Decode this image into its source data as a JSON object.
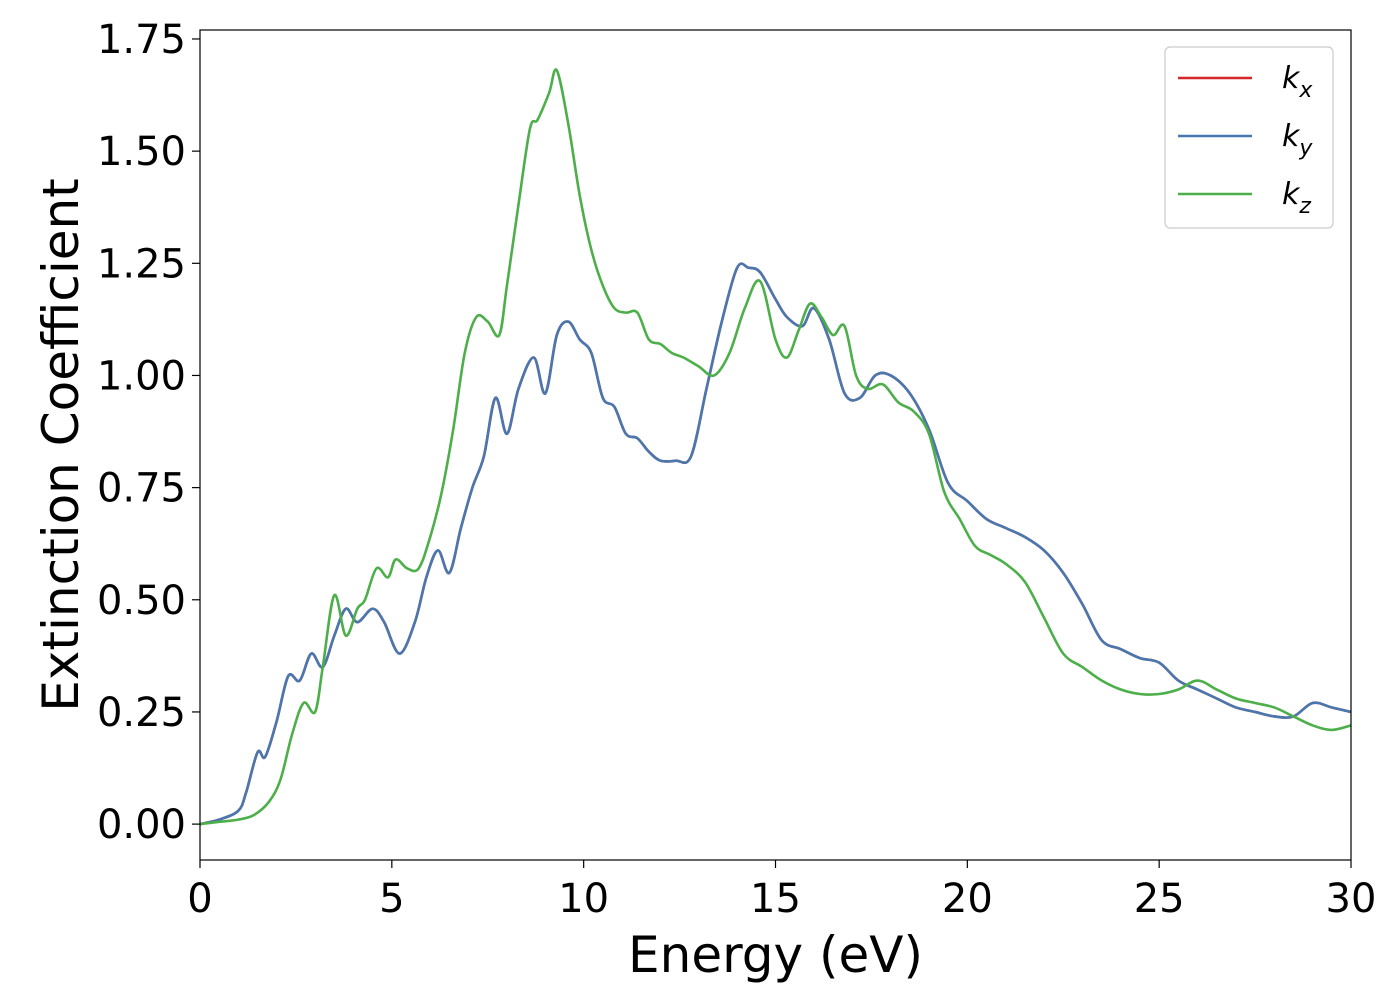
{
  "chart_data": {
    "type": "line",
    "title": "",
    "xlabel": "Energy (eV)",
    "ylabel": "Extinction Coefficient",
    "xlim": [
      0,
      30
    ],
    "ylim": [
      -0.08,
      1.77
    ],
    "xticks": [
      0,
      5,
      10,
      15,
      20,
      25,
      30
    ],
    "xtick_labels": [
      "0",
      "5",
      "10",
      "15",
      "20",
      "25",
      "30"
    ],
    "yticks": [
      0.0,
      0.25,
      0.5,
      0.75,
      1.0,
      1.25,
      1.5,
      1.75
    ],
    "ytick_labels": [
      "0.00",
      "0.25",
      "0.50",
      "0.75",
      "1.00",
      "1.25",
      "1.50",
      "1.75"
    ],
    "grid": false,
    "legend_position": "top-right",
    "series": [
      {
        "name": "k",
        "subscript": "x",
        "color": "#d62728",
        "x": [
          0,
          0.5,
          1.0,
          1.2,
          1.5,
          1.7,
          2.0,
          2.3,
          2.6,
          2.9,
          3.2,
          3.5,
          3.8,
          4.1,
          4.5,
          4.8,
          5.2,
          5.6,
          5.9,
          6.2,
          6.5,
          6.8,
          7.1,
          7.4,
          7.7,
          8.0,
          8.3,
          8.7,
          9.0,
          9.3,
          9.6,
          9.9,
          10.2,
          10.5,
          10.8,
          11.1,
          11.4,
          11.7,
          12.0,
          12.4,
          12.8,
          13.2,
          13.6,
          14.0,
          14.3,
          14.6,
          15.0,
          15.3,
          15.7,
          16.0,
          16.4,
          16.8,
          17.2,
          17.6,
          18.0,
          18.5,
          19.0,
          19.5,
          20.0,
          20.5,
          21.0,
          21.5,
          22.0,
          22.5,
          23.0,
          23.5,
          24.0,
          24.5,
          25.0,
          25.5,
          26.0,
          26.5,
          27.0,
          27.5,
          28.0,
          28.5,
          29.0,
          29.5,
          30.0
        ],
        "values": [
          0.0,
          0.01,
          0.03,
          0.07,
          0.16,
          0.15,
          0.23,
          0.33,
          0.32,
          0.38,
          0.35,
          0.42,
          0.48,
          0.45,
          0.48,
          0.45,
          0.38,
          0.45,
          0.55,
          0.61,
          0.56,
          0.66,
          0.75,
          0.82,
          0.95,
          0.87,
          0.97,
          1.04,
          0.96,
          1.09,
          1.12,
          1.08,
          1.05,
          0.95,
          0.93,
          0.87,
          0.86,
          0.83,
          0.81,
          0.81,
          0.82,
          0.97,
          1.12,
          1.24,
          1.24,
          1.23,
          1.17,
          1.13,
          1.11,
          1.15,
          1.08,
          0.96,
          0.95,
          1.0,
          1.0,
          0.96,
          0.88,
          0.76,
          0.72,
          0.68,
          0.66,
          0.64,
          0.61,
          0.56,
          0.49,
          0.41,
          0.39,
          0.37,
          0.36,
          0.32,
          0.3,
          0.28,
          0.26,
          0.25,
          0.24,
          0.24,
          0.27,
          0.26,
          0.25
        ]
      },
      {
        "name": "k",
        "subscript": "y",
        "color": "#4878b0",
        "x": [
          0,
          0.5,
          1.0,
          1.2,
          1.5,
          1.7,
          2.0,
          2.3,
          2.6,
          2.9,
          3.2,
          3.5,
          3.8,
          4.1,
          4.5,
          4.8,
          5.2,
          5.6,
          5.9,
          6.2,
          6.5,
          6.8,
          7.1,
          7.4,
          7.7,
          8.0,
          8.3,
          8.7,
          9.0,
          9.3,
          9.6,
          9.9,
          10.2,
          10.5,
          10.8,
          11.1,
          11.4,
          11.7,
          12.0,
          12.4,
          12.8,
          13.2,
          13.6,
          14.0,
          14.3,
          14.6,
          15.0,
          15.3,
          15.7,
          16.0,
          16.4,
          16.8,
          17.2,
          17.6,
          18.0,
          18.5,
          19.0,
          19.5,
          20.0,
          20.5,
          21.0,
          21.5,
          22.0,
          22.5,
          23.0,
          23.5,
          24.0,
          24.5,
          25.0,
          25.5,
          26.0,
          26.5,
          27.0,
          27.5,
          28.0,
          28.5,
          29.0,
          29.5,
          30.0
        ],
        "values": [
          0.0,
          0.01,
          0.03,
          0.07,
          0.16,
          0.15,
          0.23,
          0.33,
          0.32,
          0.38,
          0.35,
          0.42,
          0.48,
          0.45,
          0.48,
          0.45,
          0.38,
          0.45,
          0.55,
          0.61,
          0.56,
          0.66,
          0.75,
          0.82,
          0.95,
          0.87,
          0.97,
          1.04,
          0.96,
          1.09,
          1.12,
          1.08,
          1.05,
          0.95,
          0.93,
          0.87,
          0.86,
          0.83,
          0.81,
          0.81,
          0.82,
          0.97,
          1.12,
          1.24,
          1.24,
          1.23,
          1.17,
          1.13,
          1.11,
          1.15,
          1.08,
          0.96,
          0.95,
          1.0,
          1.0,
          0.96,
          0.88,
          0.76,
          0.72,
          0.68,
          0.66,
          0.64,
          0.61,
          0.56,
          0.49,
          0.41,
          0.39,
          0.37,
          0.36,
          0.32,
          0.3,
          0.28,
          0.26,
          0.25,
          0.24,
          0.24,
          0.27,
          0.26,
          0.25
        ]
      },
      {
        "name": "k",
        "subscript": "z",
        "color": "#4daf4a",
        "x": [
          0,
          0.5,
          1.0,
          1.4,
          1.8,
          2.1,
          2.4,
          2.7,
          3.0,
          3.2,
          3.5,
          3.8,
          4.1,
          4.3,
          4.6,
          4.9,
          5.1,
          5.4,
          5.7,
          6.0,
          6.3,
          6.6,
          6.9,
          7.2,
          7.5,
          7.8,
          8.0,
          8.3,
          8.6,
          8.8,
          9.1,
          9.3,
          9.6,
          9.9,
          10.2,
          10.5,
          10.8,
          11.1,
          11.4,
          11.7,
          12.0,
          12.3,
          12.6,
          13.0,
          13.4,
          13.8,
          14.2,
          14.6,
          15.0,
          15.3,
          15.6,
          15.9,
          16.2,
          16.5,
          16.8,
          17.1,
          17.4,
          17.8,
          18.2,
          18.6,
          19.0,
          19.4,
          19.8,
          20.2,
          20.6,
          21.0,
          21.5,
          22.0,
          22.5,
          23.0,
          23.5,
          24.0,
          24.5,
          25.0,
          25.5,
          26.0,
          26.5,
          27.0,
          27.5,
          28.0,
          28.5,
          29.0,
          29.5,
          30.0
        ],
        "values": [
          0.0,
          0.005,
          0.01,
          0.02,
          0.05,
          0.1,
          0.2,
          0.27,
          0.25,
          0.35,
          0.51,
          0.42,
          0.48,
          0.5,
          0.57,
          0.55,
          0.59,
          0.57,
          0.57,
          0.64,
          0.74,
          0.88,
          1.05,
          1.13,
          1.12,
          1.09,
          1.2,
          1.38,
          1.55,
          1.57,
          1.63,
          1.68,
          1.56,
          1.4,
          1.28,
          1.2,
          1.15,
          1.14,
          1.14,
          1.08,
          1.07,
          1.05,
          1.04,
          1.02,
          1.0,
          1.05,
          1.15,
          1.21,
          1.08,
          1.04,
          1.1,
          1.16,
          1.13,
          1.09,
          1.11,
          1.0,
          0.97,
          0.98,
          0.94,
          0.92,
          0.87,
          0.74,
          0.68,
          0.62,
          0.6,
          0.58,
          0.54,
          0.46,
          0.38,
          0.35,
          0.32,
          0.3,
          0.29,
          0.29,
          0.3,
          0.32,
          0.3,
          0.28,
          0.27,
          0.26,
          0.24,
          0.22,
          0.21,
          0.22
        ]
      }
    ]
  }
}
